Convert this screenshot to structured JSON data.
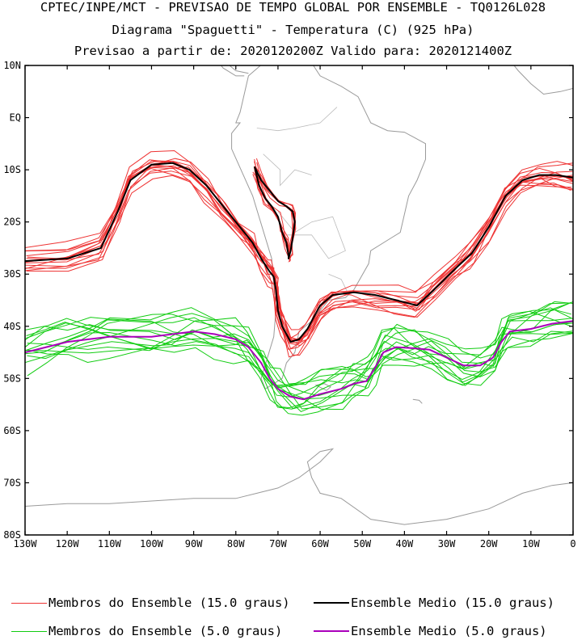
{
  "chart_data": {
    "type": "line",
    "title": "CPTEC/INPE/MCT - PREVISAO DE TEMPO GLOBAL POR ENSEMBLE - TQ0126L028",
    "subtitle": "Diagrama \"Spaguetti\" - Temperatura (C) (925 hPa)",
    "subtitle2": "Previsao a partir de: 2020120200Z  Valido para: 2020121400Z",
    "xlim": [
      -130,
      0
    ],
    "ylim": [
      -80,
      10
    ],
    "x_ticks": [
      -130,
      -120,
      -110,
      -100,
      -90,
      -80,
      -70,
      -60,
      -50,
      -40,
      -30,
      -20,
      -10,
      0
    ],
    "x_tick_labels": [
      "130W",
      "120W",
      "110W",
      "100W",
      "90W",
      "80W",
      "70W",
      "60W",
      "50W",
      "40W",
      "30W",
      "20W",
      "10W",
      "0"
    ],
    "y_ticks": [
      10,
      0,
      -10,
      -20,
      -30,
      -40,
      -50,
      -60,
      -70,
      -80
    ],
    "y_tick_labels": [
      "10N",
      "EQ",
      "10S",
      "20S",
      "30S",
      "40S",
      "50S",
      "60S",
      "70S",
      "80S"
    ],
    "colors": {
      "members_15": "#ee3333",
      "mean_15": "#000000",
      "members_5": "#11cc11",
      "mean_5": "#aa00bb",
      "coast": "#9a9a9a"
    },
    "series": [
      {
        "name": "Ensemble Medio (15.0 graus)",
        "color": "#000000",
        "lon": [
          -130,
          -120,
          -112,
          -108,
          -105,
          -100,
          -95,
          -91,
          -87,
          -83,
          -79,
          -76,
          -74,
          -72,
          -71,
          -70.5,
          -70,
          -69,
          -67,
          -65,
          -63,
          -60,
          -57,
          -52,
          -47,
          -42,
          -37,
          -33,
          -28,
          -24,
          -20,
          -16,
          -12,
          -8,
          -4,
          0
        ],
        "lat": [
          -27.5,
          -27,
          -25,
          -18,
          -12,
          -9,
          -8.7,
          -10,
          -13,
          -17,
          -21,
          -24,
          -27,
          -29.5,
          -30.5,
          -33,
          -37,
          -40,
          -43,
          -42.5,
          -40.5,
          -36,
          -34,
          -33.5,
          -34,
          -35,
          -36,
          -33,
          -29,
          -26,
          -21,
          -15,
          -12,
          -11,
          -11,
          -11.5
        ]
      },
      {
        "name": "Ensemble Medio (15.0 graus) - Andes loop",
        "color": "#000000",
        "lon": [
          -75.5,
          -74,
          -72,
          -70,
          -68,
          -66.5,
          -66,
          -66.5,
          -67,
          -67.5,
          -67.5,
          -68,
          -69,
          -70,
          -71.5,
          -73,
          -74.5,
          -75.5
        ],
        "lat": [
          -9.5,
          -12,
          -14,
          -16,
          -17,
          -18,
          -20,
          -23,
          -25.5,
          -27,
          -26.5,
          -24,
          -22,
          -19,
          -17,
          -15.5,
          -13,
          -9.5
        ]
      },
      {
        "name": "Ensemble Medio (5.0 graus)",
        "color": "#aa00bb",
        "lon": [
          -130,
          -125,
          -120,
          -115,
          -110,
          -100,
          -95,
          -90,
          -85,
          -80,
          -77,
          -74,
          -72,
          -70,
          -67,
          -64,
          -60,
          -55,
          -52,
          -49,
          -47,
          -45,
          -42,
          -38,
          -34,
          -30,
          -26,
          -22,
          -19,
          -17,
          -15,
          -10,
          -5,
          0
        ],
        "lat": [
          -45,
          -44,
          -43,
          -42.5,
          -42,
          -42,
          -41.5,
          -41,
          -41.5,
          -42.5,
          -44,
          -47,
          -50,
          -52,
          -53.5,
          -54,
          -53,
          -52,
          -51,
          -50.5,
          -48,
          -45,
          -44,
          -44.2,
          -44.5,
          -46,
          -47.5,
          -47.5,
          -46,
          -43,
          -41,
          -40.5,
          -39.5,
          -39
        ]
      }
    ],
    "member_groups": [
      {
        "name": "Membros do Ensemble (15.0 graus)",
        "color": "#ee3333",
        "count": 14
      },
      {
        "name": "Membros do Ensemble (5.0 graus)",
        "color": "#11cc11",
        "count": 14
      }
    ],
    "legend": [
      {
        "label": "Membros do Ensemble (15.0 graus)",
        "color": "#ee3333",
        "width": 1
      },
      {
        "label": "Ensemble Medio (15.0 graus)",
        "color": "#000000",
        "width": 2
      },
      {
        "label": "Membros do Ensemble (5.0 graus)",
        "color": "#11cc11",
        "width": 1
      },
      {
        "label": "Ensemble Medio (5.0 graus)",
        "color": "#aa00bb",
        "width": 2
      }
    ],
    "legend_position": "bottom",
    "grid": false
  }
}
